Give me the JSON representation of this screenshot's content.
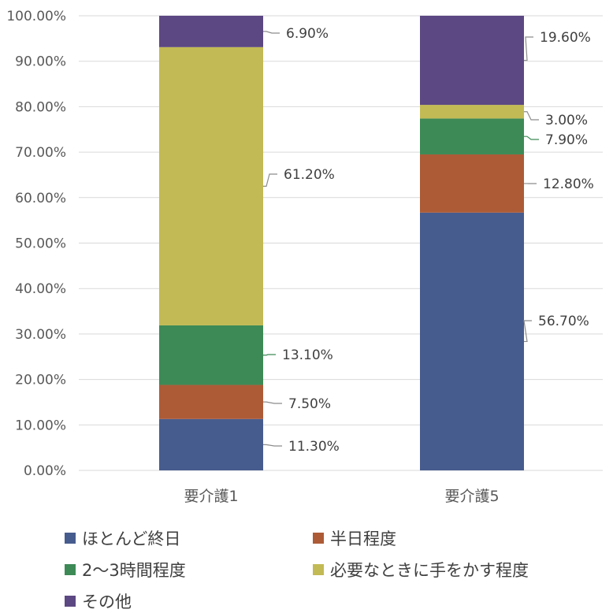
{
  "chart_data": {
    "type": "bar",
    "stacked": true,
    "percent": true,
    "categories": [
      "要介護1",
      "要介護5"
    ],
    "series": [
      {
        "name": "ほとんど終日",
        "color": "#475C8E",
        "values": [
          11.3,
          56.7
        ],
        "labels": [
          "11.30%",
          "56.70%"
        ]
      },
      {
        "name": "半日程度",
        "color": "#AD5B37",
        "values": [
          7.5,
          12.8
        ],
        "labels": [
          "7.50%",
          "12.80%"
        ]
      },
      {
        "name": "2〜3時間程度",
        "color": "#3D8A56",
        "values": [
          13.1,
          7.9
        ],
        "labels": [
          "13.10%",
          "7.90%"
        ]
      },
      {
        "name": "必要なときに手をかす程度",
        "color": "#C2BA54",
        "values": [
          61.2,
          3.0
        ],
        "labels": [
          "61.20%",
          "3.00%"
        ]
      },
      {
        "name": "その他",
        "color": "#5C4882",
        "values": [
          6.9,
          19.6
        ],
        "labels": [
          "6.90%",
          "19.60%"
        ]
      }
    ],
    "yticks": [
      "0.00%",
      "10.00%",
      "20.00%",
      "30.00%",
      "40.00%",
      "50.00%",
      "60.00%",
      "70.00%",
      "80.00%",
      "90.00%",
      "100.00%"
    ],
    "ylim": [
      0,
      100
    ],
    "grid": true,
    "legend_position": "bottom"
  }
}
